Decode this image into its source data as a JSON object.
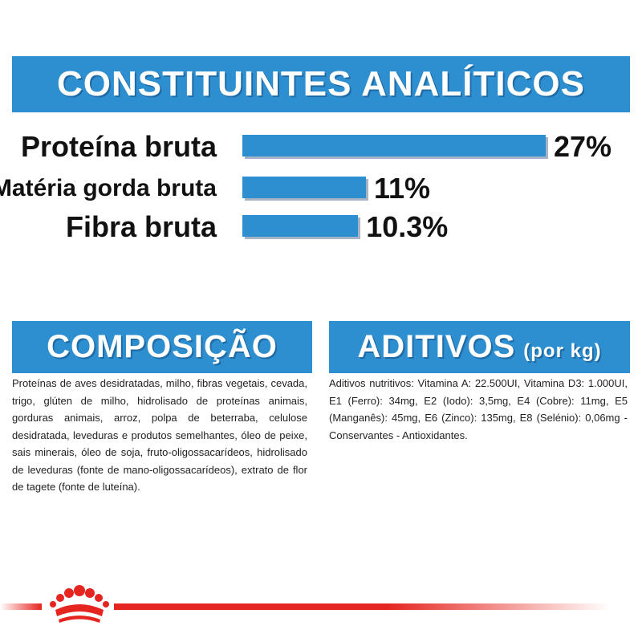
{
  "analytic": {
    "title": "CONSTITUINTES ANALÍTICOS",
    "rows": [
      {
        "label": "Proteína bruta",
        "value": "27%",
        "percent": 27
      },
      {
        "label": "Matéria gorda bruta",
        "value": "11%",
        "percent": 11
      },
      {
        "label": "Fibra bruta",
        "value": "10.3%",
        "percent": 10.3
      }
    ]
  },
  "composition": {
    "title": "COMPOSIÇÃO",
    "text": "Proteínas de aves desidratadas, milho, fibras vegetais, cevada, trigo, glúten de milho, hidrolisado de proteínas animais, gorduras animais, arroz, polpa de beterraba, celulose desidratada, leveduras e produtos semelhantes, óleo de peixe, sais minerais, óleo de soja, fruto-oligossacarídeos, hidrolisado de leveduras (fonte de mano-oligossacarídeos), extrato de flor de tagete (fonte de luteína)."
  },
  "additives": {
    "title": "ADITIVOS",
    "title_unit": "(por kg)",
    "text": "Aditivos nutritivos: Vitamina A: 22.500UI, Vitamina D3: 1.000UI, E1 (Ferro): 34mg, E2 (Iodo): 3,5mg, E4 (Cobre): 11mg, E5 (Manganês): 45mg, E6 (Zinco): 135mg, E8 (Selénio): 0,06mg - Conservantes - Antioxidantes."
  },
  "colors": {
    "banner_blue": "#2e8fd0",
    "brand_red": "#e5251f"
  },
  "footer": {
    "logo_icon": "royal-canin-crown-icon"
  }
}
